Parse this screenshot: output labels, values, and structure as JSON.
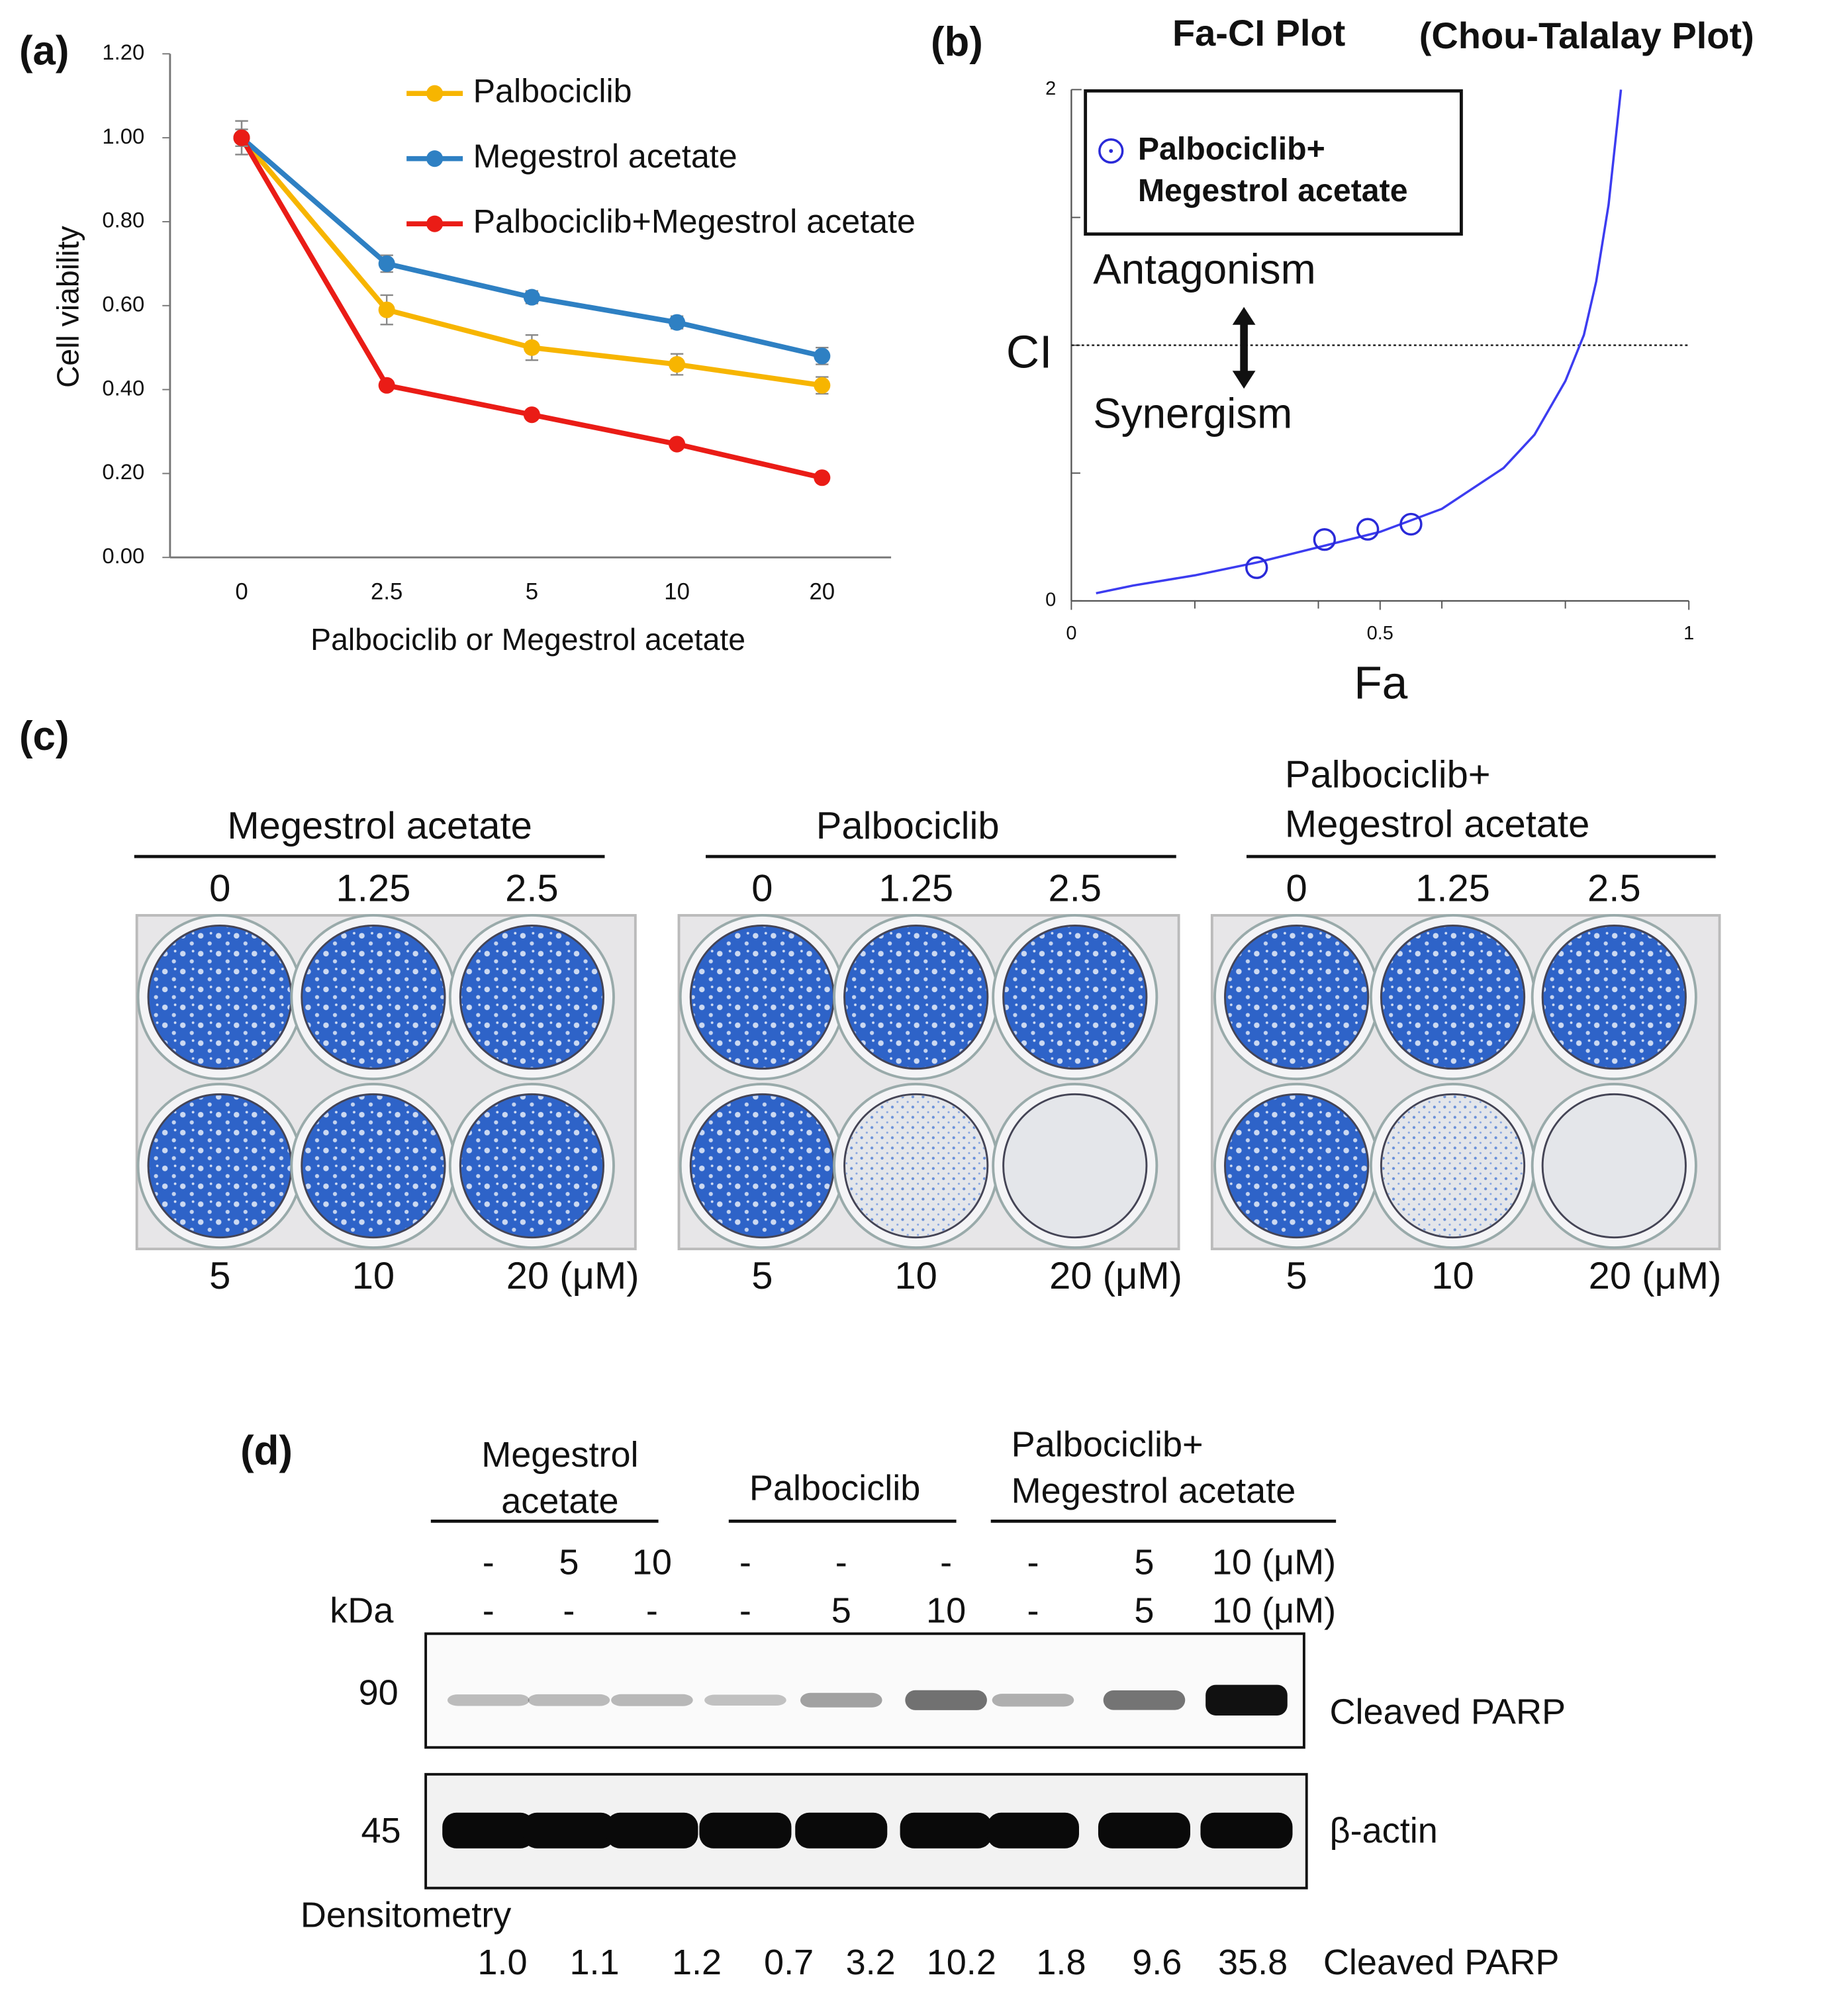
{
  "chart_data": [
    {
      "type": "line",
      "panel_label": "(a)",
      "y_label": "Cell viability",
      "x_label": "Palbociclib or Megestrol acetate",
      "categories": [
        "0",
        "2.5",
        "5",
        "10",
        "20"
      ],
      "ylim": [
        0,
        1.2
      ],
      "yticks": [
        {
          "value": 0,
          "label": "0.00"
        },
        {
          "value": 0.2,
          "label": "0.20"
        },
        {
          "value": 0.4,
          "label": "0.40"
        },
        {
          "value": 0.6,
          "label": "0.60"
        },
        {
          "value": 0.8,
          "label": "0.80"
        },
        {
          "value": 1,
          "label": "1.00"
        },
        {
          "value": 1.2,
          "label": "1.20"
        }
      ],
      "series": [
        {
          "name": "Palbociclib",
          "color": "#f7b500",
          "values": [
            1.0,
            0.59,
            0.5,
            0.46,
            0.41
          ],
          "errors": [
            0.04,
            0.035,
            0.03,
            0.025,
            0.02
          ]
        },
        {
          "name": "Megestrol acetate",
          "color": "#2e80c3",
          "values": [
            1.0,
            0.7,
            0.62,
            0.56,
            0.48
          ],
          "errors": [
            0.04,
            0.02,
            0.015,
            0.015,
            0.02
          ]
        },
        {
          "name": "Palbociclib+Megestrol acetate",
          "color": "#ea1c16",
          "values": [
            1.0,
            0.41,
            0.34,
            0.27,
            0.19
          ],
          "errors": [
            0.02,
            0.01,
            0.01,
            0.01,
            0.01
          ]
        }
      ]
    },
    {
      "type": "scatter",
      "panel_label": "(b)",
      "title": "Fa-CI Plot",
      "subtitle": "(Chou-Talalay Plot)",
      "x_label": "Fa",
      "y_label": "CI",
      "xlim": [
        0,
        1
      ],
      "xticks": [
        0,
        0.5,
        1
      ],
      "xminorticks": [
        0.2,
        0.4,
        0.6,
        0.8
      ],
      "ylim": [
        0,
        2
      ],
      "yticks": [
        0,
        2
      ],
      "yminorticks": [
        0.5,
        1,
        1.5
      ],
      "reference_line": 1,
      "annotations": [
        "Antagonism",
        "Synergism"
      ],
      "series": [
        {
          "name": "Palbociclib+\nMegestrol acetate",
          "color": "#2a2ad8",
          "x": [
            0.3,
            0.41,
            0.48,
            0.55
          ],
          "values": [
            0.13,
            0.24,
            0.28,
            0.3
          ]
        }
      ],
      "curve": {
        "color": "#3c3cf0",
        "x": [
          0.04,
          0.1,
          0.2,
          0.3,
          0.4,
          0.5,
          0.6,
          0.7,
          0.75,
          0.8,
          0.83,
          0.85,
          0.87,
          0.89
        ],
        "values": [
          0.03,
          0.06,
          0.1,
          0.15,
          0.21,
          0.27,
          0.36,
          0.52,
          0.65,
          0.86,
          1.04,
          1.25,
          1.55,
          2.0
        ]
      }
    }
  ],
  "panel_c": {
    "label": "(c)",
    "groups": [
      {
        "name": "Megestrol acetate",
        "top_doses": [
          "0",
          "1.25",
          "2.5"
        ],
        "bottom_doses": [
          "5",
          "10",
          "20 (μM)"
        ]
      },
      {
        "name": "Palbociclib",
        "top_doses": [
          "0",
          "1.25",
          "2.5"
        ],
        "bottom_doses": [
          "5",
          "10",
          "20 (μM)"
        ]
      },
      {
        "name": "Palbociclib+\nMegestrol acetate",
        "top_doses": [
          "0",
          "1.25",
          "2.5"
        ],
        "bottom_doses": [
          "5",
          "10",
          "20 (μM)"
        ]
      }
    ]
  },
  "panel_d": {
    "label": "(d)",
    "groups": [
      "Megestrol\nacetate",
      "Palbociclib",
      "Palbociclib+\nMegestrol acetate"
    ],
    "row1": [
      "-",
      "5",
      "10",
      "-",
      "-",
      "-",
      "-",
      "5",
      "10 (μM)"
    ],
    "row2": [
      "-",
      "-",
      "-",
      "-",
      "5",
      "10",
      "-",
      "5",
      "10 (μM)"
    ],
    "kda_label": "kDa",
    "markers": [
      "90",
      "45"
    ],
    "bands": [
      "Cleaved PARP",
      "β-actin"
    ],
    "densitometry": {
      "title": "Densitometry",
      "values": [
        "1.0",
        "1.1",
        "1.2",
        "0.7",
        "3.2",
        "10.2",
        "1.8",
        "9.6",
        "35.8"
      ],
      "name": "Cleaved PARP"
    }
  }
}
